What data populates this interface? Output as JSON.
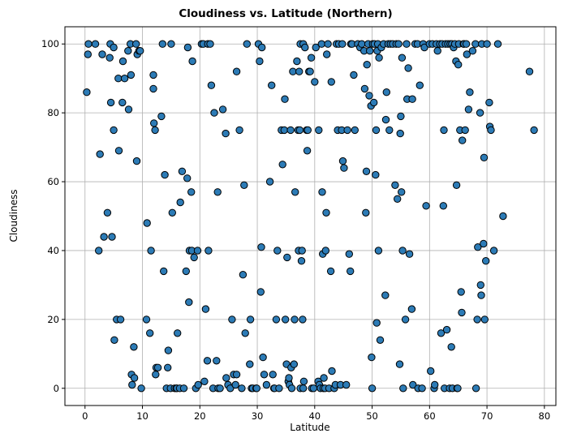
{
  "chart_data": {
    "type": "scatter",
    "title": "Cloudiness vs. Latitude (Northern)",
    "xlabel": "Latitude",
    "ylabel": "Cloudiness",
    "xlim": [
      -3.5,
      82
    ],
    "ylim": [
      -5,
      105
    ],
    "xticks": [
      0,
      10,
      20,
      30,
      40,
      50,
      60,
      70,
      80
    ],
    "yticks": [
      0,
      20,
      40,
      60,
      80,
      100
    ],
    "grid": true,
    "marker_color": "#2c7bb6",
    "marker_edge": "#000000",
    "points": [
      [
        0.3,
        86
      ],
      [
        0.5,
        97
      ],
      [
        0.6,
        100
      ],
      [
        1.8,
        100
      ],
      [
        2.4,
        40
      ],
      [
        2.6,
        68
      ],
      [
        3.0,
        97
      ],
      [
        3.3,
        44
      ],
      [
        3.9,
        51
      ],
      [
        4.3,
        96
      ],
      [
        4.4,
        100
      ],
      [
        4.5,
        83
      ],
      [
        4.7,
        44
      ],
      [
        5.0,
        75
      ],
      [
        5.1,
        14
      ],
      [
        5.0,
        99
      ],
      [
        5.5,
        20
      ],
      [
        5.8,
        90
      ],
      [
        5.9,
        69
      ],
      [
        6.2,
        20
      ],
      [
        6.5,
        83
      ],
      [
        6.6,
        95
      ],
      [
        6.9,
        90
      ],
      [
        7.5,
        98
      ],
      [
        7.6,
        81
      ],
      [
        7.9,
        100
      ],
      [
        8.0,
        91
      ],
      [
        8.1,
        4
      ],
      [
        8.2,
        1
      ],
      [
        8.5,
        12
      ],
      [
        8.6,
        3
      ],
      [
        8.9,
        100
      ],
      [
        9.0,
        66
      ],
      [
        9.1,
        97
      ],
      [
        9.4,
        98
      ],
      [
        9.6,
        98
      ],
      [
        9.8,
        0
      ],
      [
        10.7,
        20
      ],
      [
        10.8,
        48
      ],
      [
        11.3,
        16
      ],
      [
        11.5,
        40
      ],
      [
        11.9,
        91
      ],
      [
        11.9,
        87
      ],
      [
        12.0,
        77
      ],
      [
        12.2,
        75
      ],
      [
        12.3,
        4
      ],
      [
        12.4,
        6
      ],
      [
        12.7,
        6
      ],
      [
        13.3,
        79
      ],
      [
        13.5,
        100
      ],
      [
        13.7,
        34
      ],
      [
        13.9,
        62
      ],
      [
        14.2,
        0
      ],
      [
        14.4,
        6
      ],
      [
        14.5,
        11
      ],
      [
        14.9,
        0
      ],
      [
        15.0,
        100
      ],
      [
        15.2,
        51
      ],
      [
        15.6,
        0
      ],
      [
        15.9,
        0
      ],
      [
        16.0,
        0
      ],
      [
        16.1,
        16
      ],
      [
        16.5,
        0
      ],
      [
        16.6,
        54
      ],
      [
        16.9,
        63
      ],
      [
        17.2,
        0
      ],
      [
        17.6,
        34
      ],
      [
        17.8,
        61
      ],
      [
        17.9,
        99
      ],
      [
        18.1,
        25
      ],
      [
        18.2,
        40
      ],
      [
        18.5,
        57
      ],
      [
        18.6,
        40
      ],
      [
        18.7,
        95
      ],
      [
        19.0,
        38
      ],
      [
        19.3,
        0
      ],
      [
        19.6,
        40
      ],
      [
        19.7,
        1
      ],
      [
        20.3,
        100
      ],
      [
        20.6,
        100
      ],
      [
        20.8,
        2
      ],
      [
        21.0,
        23
      ],
      [
        21.3,
        8
      ],
      [
        21.4,
        100
      ],
      [
        21.5,
        40
      ],
      [
        21.8,
        100
      ],
      [
        22.0,
        88
      ],
      [
        22.3,
        0
      ],
      [
        22.5,
        80
      ],
      [
        22.9,
        8
      ],
      [
        23.1,
        57
      ],
      [
        23.2,
        0
      ],
      [
        23.5,
        0
      ],
      [
        24.0,
        81
      ],
      [
        24.5,
        74
      ],
      [
        24.6,
        3
      ],
      [
        24.9,
        1
      ],
      [
        25.3,
        0
      ],
      [
        25.6,
        20
      ],
      [
        25.9,
        4
      ],
      [
        26.2,
        1
      ],
      [
        26.4,
        4
      ],
      [
        26.4,
        92
      ],
      [
        26.9,
        75
      ],
      [
        27.3,
        0
      ],
      [
        27.5,
        33
      ],
      [
        27.7,
        59
      ],
      [
        27.9,
        16
      ],
      [
        28.2,
        100
      ],
      [
        28.7,
        7
      ],
      [
        28.8,
        20
      ],
      [
        29.0,
        0
      ],
      [
        29.2,
        0
      ],
      [
        29.8,
        0
      ],
      [
        29.9,
        0
      ],
      [
        30.2,
        100
      ],
      [
        30.4,
        95
      ],
      [
        30.6,
        28
      ],
      [
        30.7,
        41
      ],
      [
        30.8,
        99
      ],
      [
        31.0,
        9
      ],
      [
        31.2,
        4
      ],
      [
        31.6,
        1
      ],
      [
        32.2,
        60
      ],
      [
        32.5,
        88
      ],
      [
        32.7,
        4
      ],
      [
        32.9,
        0
      ],
      [
        33.0,
        0
      ],
      [
        33.3,
        20
      ],
      [
        33.5,
        40
      ],
      [
        33.8,
        0
      ],
      [
        34.2,
        75
      ],
      [
        34.4,
        65
      ],
      [
        34.7,
        75
      ],
      [
        34.8,
        84
      ],
      [
        34.9,
        20
      ],
      [
        35.1,
        7
      ],
      [
        35.2,
        38
      ],
      [
        35.4,
        2
      ],
      [
        35.5,
        3
      ],
      [
        35.6,
        1
      ],
      [
        35.8,
        75
      ],
      [
        35.9,
        6
      ],
      [
        36.0,
        0
      ],
      [
        36.2,
        92
      ],
      [
        36.4,
        7
      ],
      [
        36.5,
        20
      ],
      [
        36.6,
        57
      ],
      [
        36.9,
        95
      ],
      [
        37.1,
        75
      ],
      [
        37.2,
        40
      ],
      [
        37.3,
        92
      ],
      [
        37.4,
        75
      ],
      [
        37.5,
        0
      ],
      [
        37.5,
        100
      ],
      [
        37.7,
        37
      ],
      [
        37.8,
        40
      ],
      [
        37.9,
        20
      ],
      [
        38.0,
        0
      ],
      [
        38.0,
        100
      ],
      [
        38.1,
        2
      ],
      [
        38.3,
        99
      ],
      [
        38.6,
        75
      ],
      [
        38.7,
        69
      ],
      [
        38.8,
        75
      ],
      [
        39.0,
        92
      ],
      [
        39.2,
        92
      ],
      [
        39.4,
        96
      ],
      [
        39.5,
        0
      ],
      [
        39.8,
        0
      ],
      [
        40.0,
        89
      ],
      [
        40.2,
        99
      ],
      [
        40.6,
        2
      ],
      [
        40.7,
        75
      ],
      [
        40.8,
        1
      ],
      [
        41.0,
        0
      ],
      [
        41.2,
        100
      ],
      [
        41.3,
        57
      ],
      [
        41.4,
        39
      ],
      [
        41.5,
        0
      ],
      [
        41.6,
        3
      ],
      [
        41.8,
        0
      ],
      [
        41.9,
        40
      ],
      [
        42.0,
        51
      ],
      [
        42.1,
        97
      ],
      [
        42.3,
        100
      ],
      [
        42.5,
        0
      ],
      [
        42.8,
        34
      ],
      [
        42.9,
        89
      ],
      [
        43.0,
        5
      ],
      [
        43.4,
        0
      ],
      [
        43.6,
        1
      ],
      [
        43.8,
        100
      ],
      [
        44.0,
        75
      ],
      [
        44.2,
        100
      ],
      [
        44.5,
        1
      ],
      [
        44.7,
        75
      ],
      [
        44.8,
        100
      ],
      [
        44.9,
        66
      ],
      [
        45.1,
        64
      ],
      [
        45.5,
        1
      ],
      [
        45.7,
        75
      ],
      [
        46.0,
        39
      ],
      [
        46.2,
        34
      ],
      [
        46.3,
        100
      ],
      [
        46.5,
        100
      ],
      [
        46.8,
        91
      ],
      [
        47.0,
        75
      ],
      [
        47.5,
        100
      ],
      [
        47.9,
        99
      ],
      [
        48.2,
        100
      ],
      [
        48.6,
        98
      ],
      [
        48.7,
        87
      ],
      [
        48.9,
        51
      ],
      [
        49.0,
        63
      ],
      [
        49.1,
        94
      ],
      [
        49.3,
        100
      ],
      [
        49.5,
        85
      ],
      [
        49.6,
        98
      ],
      [
        49.8,
        82
      ],
      [
        49.9,
        9
      ],
      [
        50.0,
        0
      ],
      [
        50.1,
        100
      ],
      [
        50.3,
        83
      ],
      [
        50.4,
        100
      ],
      [
        50.6,
        62
      ],
      [
        50.7,
        75
      ],
      [
        50.8,
        19
      ],
      [
        50.9,
        98
      ],
      [
        51.0,
        100
      ],
      [
        51.1,
        40
      ],
      [
        51.2,
        96
      ],
      [
        51.4,
        14
      ],
      [
        51.6,
        99
      ],
      [
        52.0,
        100
      ],
      [
        52.3,
        27
      ],
      [
        52.4,
        78
      ],
      [
        52.5,
        86
      ],
      [
        52.8,
        100
      ],
      [
        53.0,
        75
      ],
      [
        53.2,
        100
      ],
      [
        53.6,
        100
      ],
      [
        54.0,
        59
      ],
      [
        54.2,
        100
      ],
      [
        54.4,
        55
      ],
      [
        54.6,
        100
      ],
      [
        54.8,
        7
      ],
      [
        54.9,
        74
      ],
      [
        55.0,
        79
      ],
      [
        55.1,
        57
      ],
      [
        55.2,
        96
      ],
      [
        55.3,
        40
      ],
      [
        55.4,
        0
      ],
      [
        55.8,
        20
      ],
      [
        56.0,
        100
      ],
      [
        56.1,
        84
      ],
      [
        56.3,
        93
      ],
      [
        56.5,
        39
      ],
      [
        56.9,
        23
      ],
      [
        57.0,
        84
      ],
      [
        57.1,
        1
      ],
      [
        57.5,
        100
      ],
      [
        57.9,
        100
      ],
      [
        58.0,
        0
      ],
      [
        58.3,
        88
      ],
      [
        58.7,
        0
      ],
      [
        58.9,
        100
      ],
      [
        59.1,
        99
      ],
      [
        59.4,
        53
      ],
      [
        60.0,
        100
      ],
      [
        60.2,
        5
      ],
      [
        60.5,
        100
      ],
      [
        60.8,
        0
      ],
      [
        60.9,
        1
      ],
      [
        61.2,
        100
      ],
      [
        61.4,
        98
      ],
      [
        61.8,
        100
      ],
      [
        62.0,
        16
      ],
      [
        62.2,
        100
      ],
      [
        62.4,
        53
      ],
      [
        62.5,
        75
      ],
      [
        62.6,
        0
      ],
      [
        62.8,
        100
      ],
      [
        63.0,
        17
      ],
      [
        63.2,
        100
      ],
      [
        63.5,
        0
      ],
      [
        63.6,
        100
      ],
      [
        63.8,
        12
      ],
      [
        63.9,
        100
      ],
      [
        64.0,
        0
      ],
      [
        64.2,
        99
      ],
      [
        64.4,
        100
      ],
      [
        64.6,
        95
      ],
      [
        64.7,
        59
      ],
      [
        64.8,
        0
      ],
      [
        64.9,
        0
      ],
      [
        65.0,
        94
      ],
      [
        65.1,
        100
      ],
      [
        65.3,
        75
      ],
      [
        65.5,
        28
      ],
      [
        65.6,
        22
      ],
      [
        65.7,
        72
      ],
      [
        65.9,
        100
      ],
      [
        66.0,
        100
      ],
      [
        66.2,
        75
      ],
      [
        66.4,
        100
      ],
      [
        66.5,
        97
      ],
      [
        66.8,
        81
      ],
      [
        67.0,
        86
      ],
      [
        67.5,
        98
      ],
      [
        68.0,
        100
      ],
      [
        68.1,
        0
      ],
      [
        68.3,
        20
      ],
      [
        68.4,
        41
      ],
      [
        68.8,
        80
      ],
      [
        68.9,
        30
      ],
      [
        69.0,
        27
      ],
      [
        69.1,
        100
      ],
      [
        69.4,
        42
      ],
      [
        69.5,
        67
      ],
      [
        69.6,
        20
      ],
      [
        69.8,
        37
      ],
      [
        70.0,
        100
      ],
      [
        70.4,
        83
      ],
      [
        70.5,
        76
      ],
      [
        70.7,
        75
      ],
      [
        71.2,
        40
      ],
      [
        71.9,
        100
      ],
      [
        72.8,
        50
      ],
      [
        77.4,
        92
      ],
      [
        78.2,
        75
      ]
    ]
  }
}
